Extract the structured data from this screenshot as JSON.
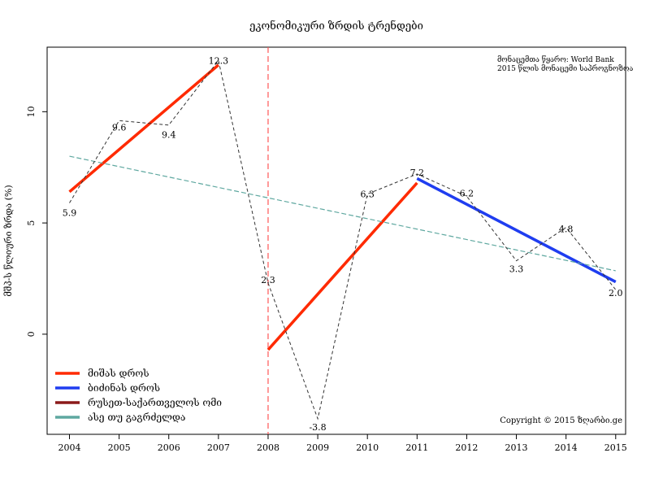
{
  "chart_data": {
    "type": "line",
    "title": "ეკონომიკური ზრდის ტრენდები",
    "ylabel": "მშპ-ს წლიური ზრდა (%)",
    "xlabel": "",
    "x": [
      2004,
      2005,
      2006,
      2007,
      2008,
      2009,
      2010,
      2011,
      2012,
      2013,
      2014,
      2015
    ],
    "xlim": [
      2003.55,
      2015.2
    ],
    "ylim": [
      -4.5,
      12.9
    ],
    "y_ticks": [
      0,
      5,
      10
    ],
    "grid": false,
    "growth": {
      "values": [
        5.9,
        9.6,
        9.4,
        12.3,
        2.3,
        -3.8,
        6.3,
        7.2,
        6.2,
        3.3,
        4.8,
        2.0
      ],
      "labels": [
        "5.9",
        "9.6",
        "9.4",
        "12.3",
        "2.3",
        "-3.8",
        "6.3",
        "7.2",
        "6.2",
        "3.3",
        "4.8",
        "2.0"
      ],
      "color": "#333333"
    },
    "series": [
      {
        "name": "მიშას დროს",
        "color": "#ff2a00",
        "x": [
          2004,
          2007
        ],
        "values": [
          6.4,
          12.1
        ]
      },
      {
        "name": "მიშას დროს",
        "color": "#ff2a00",
        "x": [
          2008,
          2011
        ],
        "values": [
          -0.7,
          6.8
        ],
        "legend": false
      },
      {
        "name": "ბიძინას დროს",
        "color": "#1f3df0",
        "x": [
          2011,
          2015
        ],
        "values": [
          7.0,
          2.35
        ]
      },
      {
        "name": "რუსეთ-საქართველოს ომი",
        "color": "#8b1a1a",
        "x": [
          2008,
          2008
        ],
        "values": [
          -4.5,
          12.9
        ],
        "dashed": true,
        "vertical": true,
        "line_color": "#ff5555"
      },
      {
        "name": "ასე თუ გაგრძელდა",
        "color": "#5fa8a0",
        "x": [
          2004,
          2015
        ],
        "values": [
          8.0,
          2.85
        ],
        "dashed": true
      }
    ],
    "legend_position": "bottom-left",
    "annotations": {
      "source": "მონაცემთა წყარო: World Bank",
      "note": "2015 წლის მონაცემი საპროგნოზოა",
      "copyright": "Copyright © 2015 ზღარბი.ge"
    }
  }
}
